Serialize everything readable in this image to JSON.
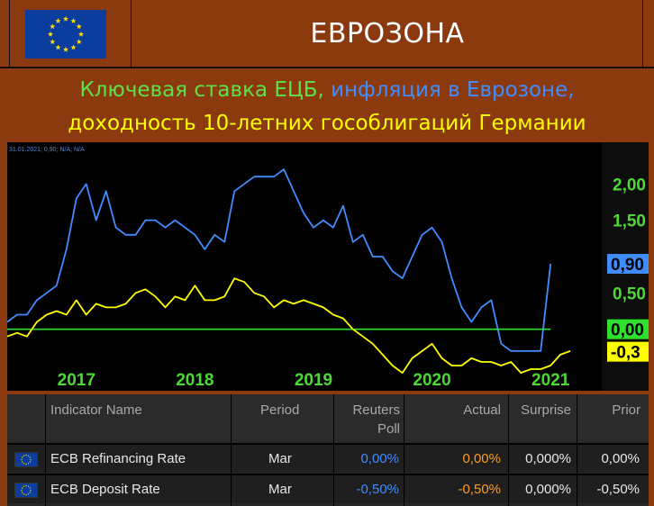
{
  "header": {
    "title": "ЕВРОЗОНА",
    "flag_icon": "eu-flag-icon"
  },
  "subtitle": {
    "part1": "Ключевая ставка ЕЦБ,",
    "part2": "инфляция в Еврозоне,",
    "part3": "доходность 10-летних гособлигаций Германии"
  },
  "chart_data": {
    "type": "line",
    "info_line": "31.01.2021; 0,90; N/A; N/A",
    "x_ticks": [
      "2017",
      "2018",
      "2019",
      "2020",
      "2021"
    ],
    "y_ticks": [
      "2,00",
      "1,50",
      "0,50"
    ],
    "ylim": [
      -0.5,
      2.4
    ],
    "grid": false,
    "series": [
      {
        "color": "#3f8dff",
        "last_label": "0,90",
        "x": [
          "2016-06",
          "2016-07",
          "2016-08",
          "2016-09",
          "2016-10",
          "2016-11",
          "2016-12",
          "2017-01",
          "2017-02",
          "2017-03",
          "2017-04",
          "2017-05",
          "2017-06",
          "2017-07",
          "2017-08",
          "2017-09",
          "2017-10",
          "2017-11",
          "2017-12",
          "2018-01",
          "2018-02",
          "2018-03",
          "2018-04",
          "2018-05",
          "2018-06",
          "2018-07",
          "2018-08",
          "2018-09",
          "2018-10",
          "2018-11",
          "2018-12",
          "2019-01",
          "2019-02",
          "2019-03",
          "2019-04",
          "2019-05",
          "2019-06",
          "2019-07",
          "2019-08",
          "2019-09",
          "2019-10",
          "2019-11",
          "2019-12",
          "2020-01",
          "2020-02",
          "2020-03",
          "2020-04",
          "2020-05",
          "2020-06",
          "2020-07",
          "2020-08",
          "2020-09",
          "2020-10",
          "2020-11",
          "2020-12",
          "2021-01"
        ],
        "values": [
          0.1,
          0.2,
          0.2,
          0.4,
          0.5,
          0.6,
          1.1,
          1.8,
          2.0,
          1.5,
          1.9,
          1.4,
          1.3,
          1.3,
          1.5,
          1.5,
          1.4,
          1.5,
          1.4,
          1.3,
          1.1,
          1.3,
          1.2,
          1.9,
          2.0,
          2.1,
          2.1,
          2.1,
          2.2,
          1.9,
          1.6,
          1.4,
          1.5,
          1.4,
          1.7,
          1.2,
          1.3,
          1.0,
          1.0,
          0.8,
          0.7,
          1.0,
          1.3,
          1.4,
          1.2,
          0.7,
          0.3,
          0.1,
          0.3,
          0.4,
          -0.2,
          -0.3,
          -0.3,
          -0.3,
          -0.3,
          0.9
        ]
      },
      {
        "color": "#2fe02f",
        "last_label": "0,00",
        "x": [
          "2016-06",
          "2021-01"
        ],
        "values": [
          0.0,
          0.0
        ]
      },
      {
        "color": "#ffff00",
        "last_label": "-0,3",
        "x": [
          "2016-06",
          "2016-07",
          "2016-08",
          "2016-09",
          "2016-10",
          "2016-11",
          "2016-12",
          "2017-01",
          "2017-02",
          "2017-03",
          "2017-04",
          "2017-05",
          "2017-06",
          "2017-07",
          "2017-08",
          "2017-09",
          "2017-10",
          "2017-11",
          "2017-12",
          "2018-01",
          "2018-02",
          "2018-03",
          "2018-04",
          "2018-05",
          "2018-06",
          "2018-07",
          "2018-08",
          "2018-09",
          "2018-10",
          "2018-11",
          "2018-12",
          "2019-01",
          "2019-02",
          "2019-03",
          "2019-04",
          "2019-05",
          "2019-06",
          "2019-07",
          "2019-08",
          "2019-09",
          "2019-10",
          "2019-11",
          "2019-12",
          "2020-01",
          "2020-02",
          "2020-03",
          "2020-04",
          "2020-05",
          "2020-06",
          "2020-07",
          "2020-08",
          "2020-09",
          "2020-10",
          "2020-11",
          "2020-12",
          "2021-01",
          "2021-02",
          "2021-03"
        ],
        "values": [
          -0.1,
          -0.05,
          -0.1,
          0.1,
          0.2,
          0.25,
          0.2,
          0.4,
          0.2,
          0.35,
          0.3,
          0.3,
          0.35,
          0.5,
          0.55,
          0.45,
          0.3,
          0.45,
          0.4,
          0.6,
          0.4,
          0.4,
          0.45,
          0.7,
          0.65,
          0.5,
          0.45,
          0.3,
          0.4,
          0.35,
          0.4,
          0.35,
          0.3,
          0.2,
          0.15,
          0.0,
          -0.1,
          -0.2,
          -0.35,
          -0.5,
          -0.6,
          -0.4,
          -0.3,
          -0.2,
          -0.4,
          -0.5,
          -0.5,
          -0.4,
          -0.45,
          -0.45,
          -0.5,
          -0.45,
          -0.6,
          -0.55,
          -0.55,
          -0.5,
          -0.35,
          -0.3
        ]
      }
    ]
  },
  "table": {
    "headers": {
      "indicator": "Indicator Name",
      "period": "Period",
      "poll_line1": "Reuters",
      "poll_line2": "Poll",
      "actual": "Actual",
      "surprise": "Surprise",
      "prior": "Prior"
    },
    "rows": [
      {
        "name": "ECB Refinancing Rate",
        "period": "Mar",
        "poll": "0,00%",
        "actual": "0,00%",
        "surprise": "0,000%",
        "prior": "0,00%"
      },
      {
        "name": "ECB Deposit Rate",
        "period": "Mar",
        "poll": "-0,50%",
        "actual": "-0,50%",
        "surprise": "0,000%",
        "prior": "-0,50%"
      }
    ],
    "colors": {
      "poll": "#3f8dff",
      "actual": "#ff9b1a"
    }
  }
}
